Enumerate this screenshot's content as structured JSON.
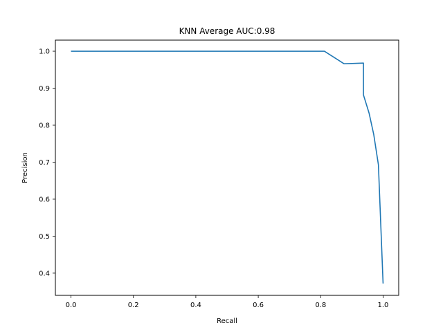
{
  "chart_data": {
    "type": "line",
    "title": "KNN Average AUC:0.98",
    "xlabel": "Recall",
    "ylabel": "Precision",
    "xlim": [
      -0.05,
      1.05
    ],
    "ylim": [
      0.34,
      1.03
    ],
    "x_ticks": [
      0.0,
      0.2,
      0.4,
      0.6,
      0.8,
      1.0
    ],
    "x_tick_labels": [
      "0.0",
      "0.2",
      "0.4",
      "0.6",
      "0.8",
      "1.0"
    ],
    "y_ticks": [
      0.4,
      0.5,
      0.6,
      0.7,
      0.8,
      0.9,
      1.0
    ],
    "y_tick_labels": [
      "0.4",
      "0.5",
      "0.6",
      "0.7",
      "0.8",
      "0.9",
      "1.0"
    ],
    "grid": false,
    "legend": "none",
    "series": [
      {
        "color": "#1f77b4",
        "x": [
          0.0,
          0.812,
          0.875,
          0.937,
          0.937,
          0.955,
          0.97,
          0.985,
          1.0
        ],
        "y": [
          1.0,
          1.0,
          0.966,
          0.968,
          0.882,
          0.833,
          0.775,
          0.693,
          0.372
        ]
      }
    ]
  }
}
